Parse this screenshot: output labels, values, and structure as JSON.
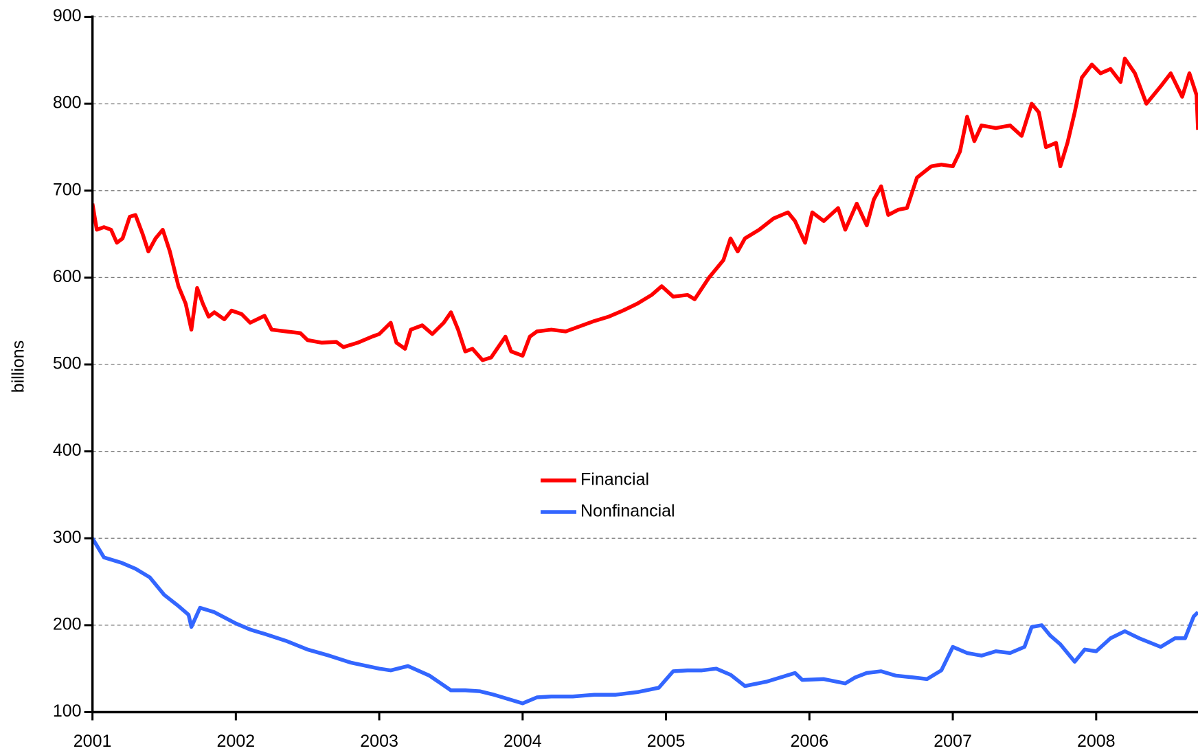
{
  "chart_data": {
    "type": "line",
    "y_label": "billions",
    "xlim": [
      2001,
      2008.71
    ],
    "xticks": [
      2001,
      2002,
      2003,
      2004,
      2005,
      2006,
      2007,
      2008
    ],
    "ylim": [
      100,
      900
    ],
    "yticks": [
      100,
      200,
      300,
      400,
      500,
      600,
      700,
      800,
      900
    ],
    "grid": true,
    "legend": "center",
    "series": [
      {
        "name": "Financial",
        "color": "#ff0000",
        "x": [
          2001.0,
          2001.03,
          2001.08,
          2001.13,
          2001.17,
          2001.21,
          2001.26,
          2001.3,
          2001.35,
          2001.39,
          2001.44,
          2001.49,
          2001.54,
          2001.6,
          2001.65,
          2001.69,
          2001.73,
          2001.77,
          2001.81,
          2001.85,
          2001.92,
          2001.97,
          2002.04,
          2002.1,
          2002.2,
          2002.25,
          2002.35,
          2002.45,
          2002.5,
          2002.6,
          2002.7,
          2002.75,
          2002.85,
          2002.95,
          2003.0,
          2003.08,
          2003.12,
          2003.18,
          2003.22,
          2003.3,
          2003.37,
          2003.45,
          2003.5,
          2003.55,
          2003.6,
          2003.65,
          2003.72,
          2003.78,
          2003.83,
          2003.88,
          2003.92,
          2004.0,
          2004.05,
          2004.1,
          2004.2,
          2004.3,
          2004.4,
          2004.5,
          2004.6,
          2004.7,
          2004.8,
          2004.9,
          2004.97,
          2005.05,
          2005.15,
          2005.2,
          2005.3,
          2005.4,
          2005.45,
          2005.5,
          2005.55,
          2005.65,
          2005.75,
          2005.85,
          2005.9,
          2005.97,
          2006.02,
          2006.1,
          2006.2,
          2006.25,
          2006.33,
          2006.4,
          2006.45,
          2006.5,
          2006.55,
          2006.62,
          2006.68,
          2006.75,
          2006.85,
          2006.92,
          2007.0,
          2007.05,
          2007.1,
          2007.15,
          2007.2,
          2007.3,
          2007.4,
          2007.48,
          2007.55,
          2007.6,
          2007.65,
          2007.72,
          2007.75,
          2007.8,
          2007.85,
          2007.9,
          2007.97,
          2008.03,
          2008.1,
          2008.17,
          2008.2,
          2008.27,
          2008.35,
          2008.45,
          2008.52,
          2008.6,
          2008.65,
          2008.7,
          2008.71
        ],
        "values": [
          685,
          655,
          658,
          655,
          640,
          645,
          670,
          672,
          650,
          630,
          645,
          655,
          630,
          590,
          570,
          540,
          588,
          570,
          555,
          560,
          552,
          562,
          558,
          548,
          556,
          540,
          538,
          536,
          528,
          525,
          526,
          520,
          525,
          532,
          535,
          548,
          525,
          518,
          540,
          545,
          535,
          548,
          560,
          540,
          515,
          518,
          505,
          508,
          520,
          532,
          515,
          510,
          532,
          538,
          540,
          538,
          544,
          550,
          555,
          562,
          570,
          580,
          590,
          578,
          580,
          575,
          600,
          620,
          645,
          630,
          645,
          655,
          668,
          675,
          665,
          640,
          675,
          665,
          680,
          655,
          685,
          660,
          690,
          705,
          672,
          678,
          680,
          715,
          728,
          730,
          728,
          745,
          785,
          757,
          775,
          772,
          775,
          763,
          800,
          790,
          750,
          755,
          728,
          755,
          790,
          830,
          845,
          835,
          840,
          825,
          852,
          835,
          800,
          820,
          835,
          808,
          835,
          810,
          770
        ]
      },
      {
        "name": "Nonfinancial",
        "color": "#3366ff",
        "x": [
          2001.0,
          2001.08,
          2001.2,
          2001.3,
          2001.4,
          2001.5,
          2001.6,
          2001.67,
          2001.69,
          2001.75,
          2001.85,
          2002.0,
          2002.1,
          2002.2,
          2002.35,
          2002.5,
          2002.65,
          2002.8,
          2003.0,
          2003.08,
          2003.2,
          2003.35,
          2003.5,
          2003.6,
          2003.7,
          2003.8,
          2003.9,
          2004.0,
          2004.1,
          2004.2,
          2004.35,
          2004.5,
          2004.65,
          2004.8,
          2004.95,
          2005.05,
          2005.15,
          2005.25,
          2005.35,
          2005.45,
          2005.55,
          2005.7,
          2005.8,
          2005.9,
          2005.95,
          2006.1,
          2006.25,
          2006.32,
          2006.4,
          2006.5,
          2006.6,
          2006.72,
          2006.82,
          2006.92,
          2007.0,
          2007.1,
          2007.2,
          2007.3,
          2007.4,
          2007.5,
          2007.55,
          2007.62,
          2007.68,
          2007.75,
          2007.85,
          2007.92,
          2008.0,
          2008.1,
          2008.2,
          2008.3,
          2008.45,
          2008.55,
          2008.62,
          2008.68,
          2008.71
        ],
        "values": [
          300,
          278,
          272,
          265,
          255,
          235,
          222,
          212,
          198,
          220,
          215,
          202,
          195,
          190,
          182,
          172,
          165,
          157,
          150,
          148,
          153,
          142,
          125,
          125,
          124,
          120,
          115,
          110,
          117,
          118,
          118,
          120,
          120,
          123,
          128,
          147,
          148,
          148,
          150,
          143,
          130,
          135,
          140,
          145,
          137,
          138,
          133,
          140,
          145,
          147,
          142,
          140,
          138,
          148,
          175,
          168,
          165,
          170,
          168,
          175,
          198,
          200,
          188,
          178,
          158,
          172,
          170,
          185,
          193,
          185,
          175,
          185,
          185,
          210,
          215
        ]
      }
    ]
  }
}
